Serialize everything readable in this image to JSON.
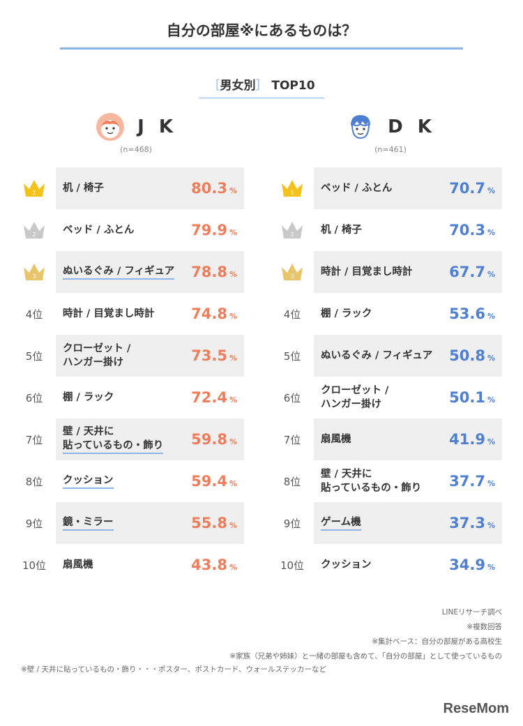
{
  "title": "自分の部屋※にあるものは？",
  "subtitle": {
    "open": "［",
    "text": "男女別",
    "close": "］",
    "suffix": "TOP10"
  },
  "groups": {
    "jk": {
      "name": "J K",
      "n": "(n=468)"
    },
    "dk": {
      "name": "D K",
      "n": "(n=461)"
    }
  },
  "pct_unit": "%",
  "rank_labels": [
    "1",
    "2",
    "3",
    "4位",
    "5位",
    "6位",
    "7位",
    "8位",
    "9位",
    "10位"
  ],
  "colors": {
    "jk": "#ee7d5b",
    "dk": "#4f7fd0",
    "gold": "#f4c21a",
    "silver": "#c9c9c9",
    "bronze": "#e8c46a",
    "accent": "#8cb4e6"
  },
  "chart_data": [
    {
      "type": "table",
      "series_name": "J K",
      "rows": [
        {
          "label": "机 / 椅子",
          "value": 80.3
        },
        {
          "label": "ベッド / ふとん",
          "value": 79.9
        },
        {
          "label": "ぬいるぐみ / フィギュア",
          "value": 78.8
        },
        {
          "label": "時計 / 目覚まし時計",
          "value": 74.8
        },
        {
          "label": "クローゼット /\nハンガー掛け",
          "value": 73.5
        },
        {
          "label": "棚 / ラック",
          "value": 72.4
        },
        {
          "label": "壁 / 天井に\n貼っているもの・飾り",
          "value": 59.8
        },
        {
          "label": "クッション",
          "value": 59.4
        },
        {
          "label": "鏡・ミラー",
          "value": 55.8
        },
        {
          "label": "扇風機",
          "value": 43.8
        }
      ]
    },
    {
      "type": "table",
      "series_name": "D K",
      "rows": [
        {
          "label": "ベッド / ふとん",
          "value": 70.7
        },
        {
          "label": "机 / 椅子",
          "value": 70.3
        },
        {
          "label": "時計 / 目覚まし時計",
          "value": 67.7
        },
        {
          "label": "棚 / ラック",
          "value": 53.6
        },
        {
          "label": "ぬいるぐみ / フィギュア",
          "value": 50.8
        },
        {
          "label": "クローゼット /\nハンガー掛け",
          "value": 50.1
        },
        {
          "label": "扇風機",
          "value": 41.9
        },
        {
          "label": "壁 / 天井に\n貼っているもの・飾り",
          "value": 37.7
        },
        {
          "label": "ゲーム機",
          "value": 37.3
        },
        {
          "label": "クッション",
          "value": 34.9
        }
      ]
    }
  ],
  "notes": [
    "LINEリサーチ調べ",
    "※複数回答",
    "※集計ベース：自分の部屋がある高校生",
    "※家族（兄弟や姉妹）と一緒の部屋も含めて、「自分の部屋」として使っているもの"
  ],
  "note_left": "※壁 / 天井に貼っているもの・飾り・・・ポスター、ポストカード、ウォールステッカーなど",
  "logo": "ReseMom"
}
